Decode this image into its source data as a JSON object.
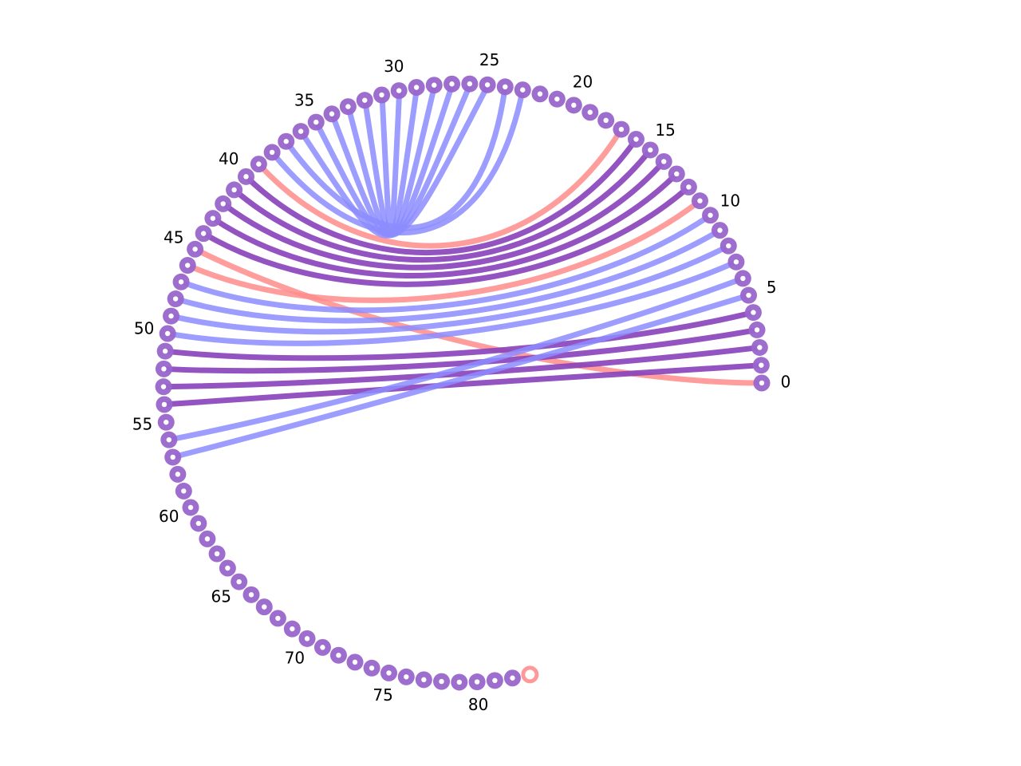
{
  "diagram": {
    "node_count": 84,
    "start_angle_deg": 0,
    "end_angle_deg": 283,
    "tick_labels": [
      "0",
      "5",
      "10",
      "15",
      "20",
      "25",
      "30",
      "35",
      "40",
      "45",
      "50",
      "55",
      "60",
      "65",
      "70",
      "75",
      "80"
    ],
    "colors": {
      "node": "#9966cc",
      "node_center": "#ffffff",
      "link_blue": "#8c8cff",
      "link_red": "#ff8c8c",
      "link_purple": "#8a44bb",
      "end_node": "#ff9999"
    },
    "links": [
      {
        "source": 0,
        "target": 45,
        "color": "red"
      },
      {
        "source": 1,
        "target": 54,
        "color": "purple"
      },
      {
        "source": 2,
        "target": 53,
        "color": "purple"
      },
      {
        "source": 3,
        "target": 52,
        "color": "purple"
      },
      {
        "source": 4,
        "target": 51,
        "color": "purple"
      },
      {
        "source": 5,
        "target": 57,
        "color": "blue"
      },
      {
        "source": 6,
        "target": 56,
        "color": "blue"
      },
      {
        "source": 7,
        "target": 50,
        "color": "blue"
      },
      {
        "source": 8,
        "target": 49,
        "color": "blue"
      },
      {
        "source": 9,
        "target": 48,
        "color": "blue"
      },
      {
        "source": 10,
        "target": 47,
        "color": "blue"
      },
      {
        "source": 11,
        "target": 46,
        "color": "red"
      },
      {
        "source": 12,
        "target": 44,
        "color": "purple"
      },
      {
        "source": 13,
        "target": 43,
        "color": "purple"
      },
      {
        "source": 14,
        "target": 42,
        "color": "purple"
      },
      {
        "source": 15,
        "target": 41,
        "color": "purple"
      },
      {
        "source": 16,
        "target": 40,
        "color": "purple"
      },
      {
        "source": 17,
        "target": 39,
        "color": "red"
      },
      {
        "source": 23,
        "target": 38,
        "color": "blue"
      },
      {
        "source": 24,
        "target": 37,
        "color": "blue"
      },
      {
        "source": 25,
        "target": 36,
        "color": "blue"
      },
      {
        "source": 26,
        "target": 35,
        "color": "blue"
      },
      {
        "source": 27,
        "target": 34,
        "color": "blue"
      },
      {
        "source": 28,
        "target": 33,
        "color": "blue"
      },
      {
        "source": 29,
        "target": 32,
        "color": "blue"
      },
      {
        "source": 30,
        "target": 31,
        "color": "blue"
      }
    ]
  }
}
